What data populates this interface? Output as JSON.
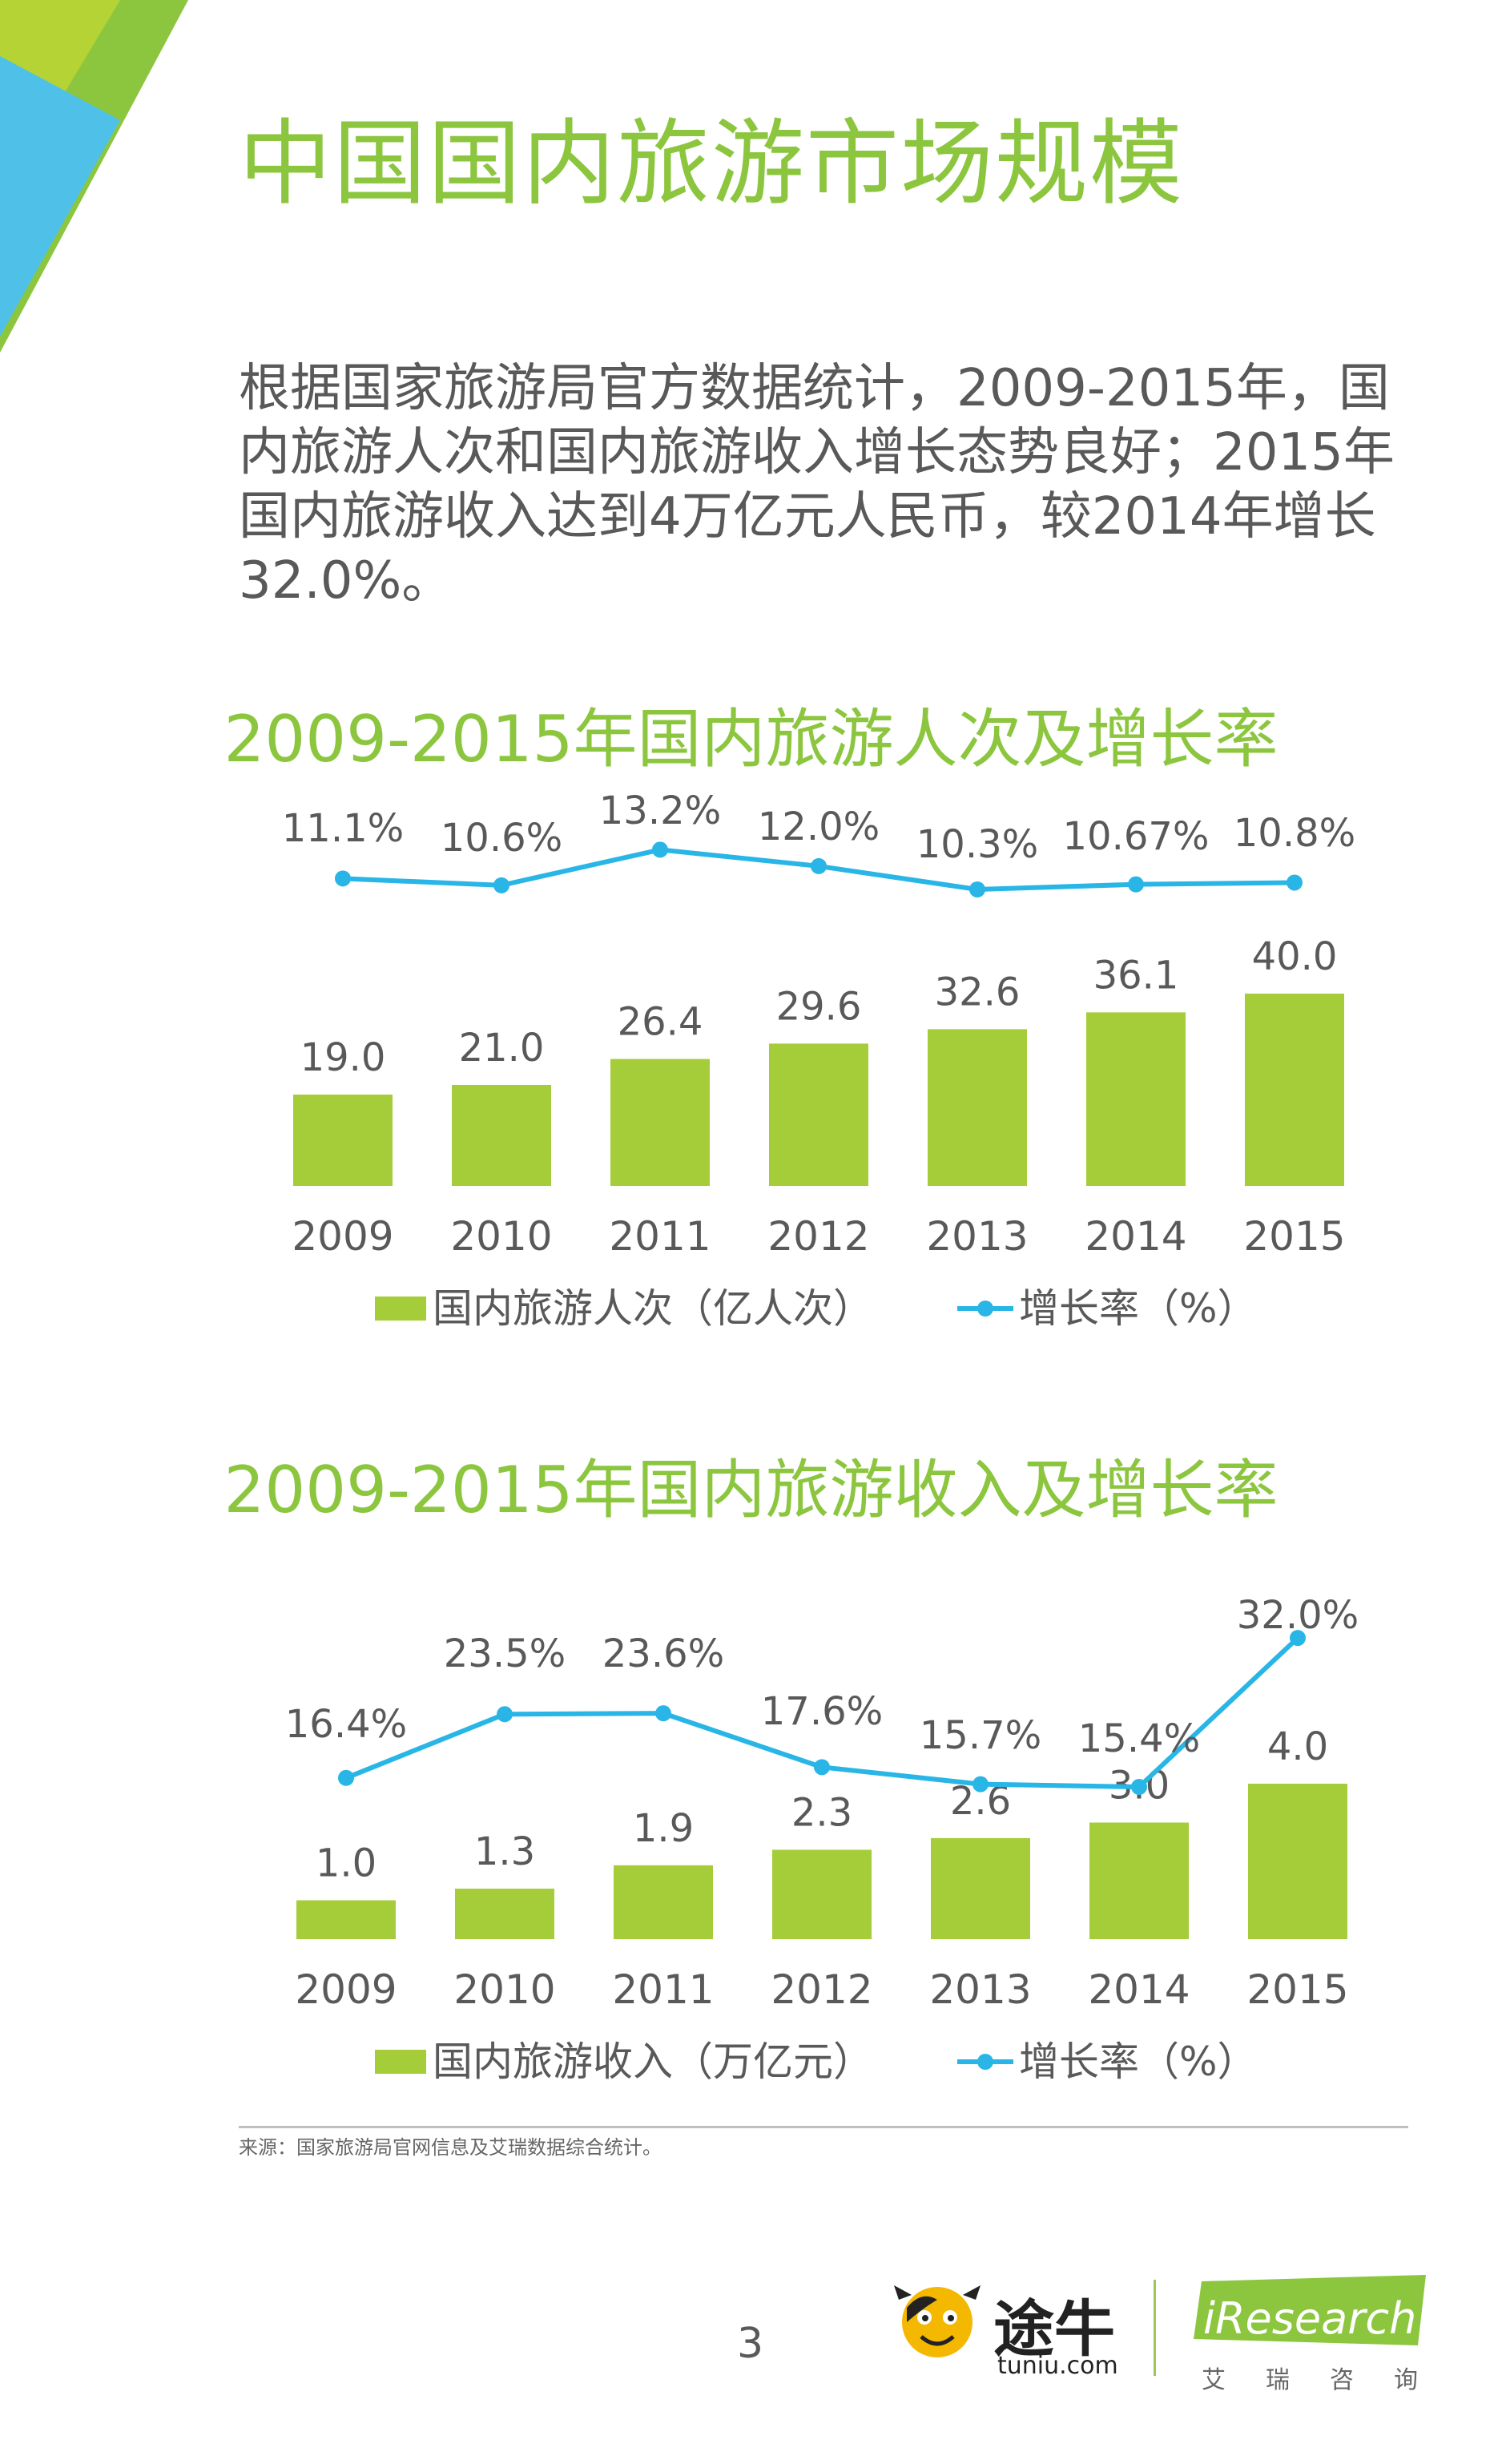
{
  "page": {
    "title": "中国国内旅游市场规模",
    "intro": "根据国家旅游局官方数据统计，2009-2015年，国内旅游人次和国内旅游收入增长态势良好；2015年国内旅游收入达到4万亿元人民币，较2014年增长32.0%。",
    "source": "来源：国家旅游局官网信息及艾瑞数据综合统计。",
    "page_number": "3"
  },
  "branding": {
    "tuniu_name": "途牛",
    "tuniu_url": "tuniu.com",
    "iresearch_name": "iResearch",
    "iresearch_cn": "艾瑞咨询"
  },
  "colors": {
    "title_green": "#8cc63f",
    "bar_green": "#a5cd39",
    "line_blue": "#29b6e6",
    "text_gray": "#595959"
  },
  "chart_data": [
    {
      "type": "bar",
      "title": "2009-2015年国内旅游人次及增长率",
      "categories": [
        "2009",
        "2010",
        "2011",
        "2012",
        "2013",
        "2014",
        "2015"
      ],
      "series": [
        {
          "name": "国内旅游人次（亿人次）",
          "type": "bar",
          "values": [
            19.0,
            21.0,
            26.4,
            29.6,
            32.6,
            36.1,
            40.0
          ],
          "labels": [
            "19.0",
            "21.0",
            "26.4",
            "29.6",
            "32.6",
            "36.1",
            "40.0"
          ]
        },
        {
          "name": "增长率（%）",
          "type": "line",
          "values": [
            11.1,
            10.6,
            13.2,
            12.0,
            10.3,
            10.67,
            10.8
          ],
          "labels": [
            "11.1%",
            "10.6%",
            "13.2%",
            "12.0%",
            "10.3%",
            "10.67%",
            "10.8%"
          ]
        }
      ],
      "legend_position": "bottom",
      "grid": false
    },
    {
      "type": "bar",
      "title": "2009-2015年国内旅游收入及增长率",
      "categories": [
        "2009",
        "2010",
        "2011",
        "2012",
        "2013",
        "2014",
        "2015"
      ],
      "series": [
        {
          "name": "国内旅游收入（万亿元）",
          "type": "bar",
          "values": [
            1.0,
            1.3,
            1.9,
            2.3,
            2.6,
            3.0,
            4.0
          ],
          "labels": [
            "1.0",
            "1.3",
            "1.9",
            "2.3",
            "2.6",
            "3.0",
            "4.0"
          ]
        },
        {
          "name": "增长率（%）",
          "type": "line",
          "values": [
            16.4,
            23.5,
            23.6,
            17.6,
            15.7,
            15.4,
            32.0
          ],
          "labels": [
            "16.4%",
            "23.5%",
            "23.6%",
            "17.6%",
            "15.7%",
            "15.4%",
            "32.0%"
          ]
        }
      ],
      "legend_position": "bottom",
      "grid": false
    }
  ]
}
